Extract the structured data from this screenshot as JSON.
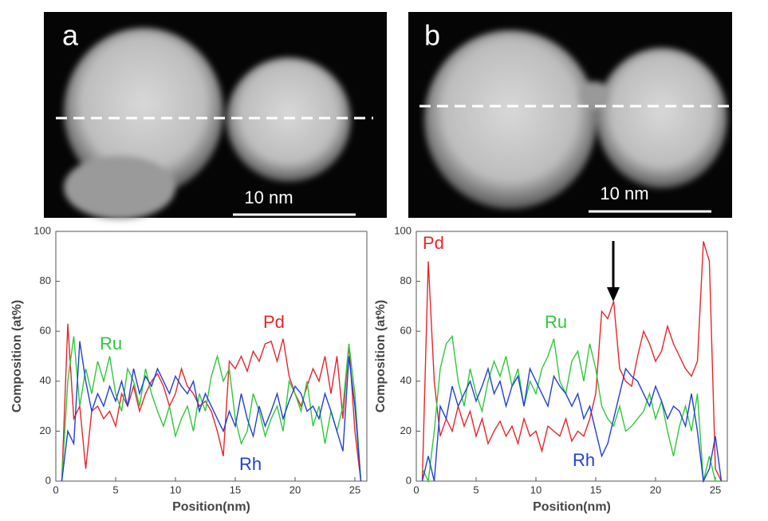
{
  "panels": [
    {
      "label": "a",
      "scale_bar": "10 nm"
    },
    {
      "label": "b",
      "scale_bar": "10 nm"
    }
  ],
  "chart_data": [
    {
      "type": "line",
      "xlabel": "Position(nm)",
      "ylabel": "Composition (at%)",
      "xlim": [
        0,
        26
      ],
      "ylim": [
        0,
        100
      ],
      "xticks": [
        0,
        5,
        10,
        15,
        20,
        25
      ],
      "yticks": [
        0,
        20,
        40,
        60,
        80,
        100
      ],
      "x": [
        0.5,
        1,
        1.5,
        2,
        2.5,
        3,
        3.5,
        4,
        4.5,
        5,
        5.5,
        6,
        6.5,
        7,
        7.5,
        8,
        8.5,
        9,
        9.5,
        10,
        10.5,
        11,
        11.5,
        12,
        12.5,
        13,
        13.5,
        14,
        14.5,
        15,
        15.5,
        16,
        16.5,
        17,
        17.5,
        18,
        18.5,
        19,
        19.5,
        20,
        20.5,
        21,
        21.5,
        22,
        22.5,
        23,
        23.5,
        24,
        24.5,
        25,
        25.5
      ],
      "series": [
        {
          "name": "Pd",
          "color": "#e8242a",
          "values": [
            0,
            63,
            25,
            30,
            5,
            28,
            30,
            25,
            28,
            22,
            35,
            30,
            38,
            28,
            35,
            40,
            43,
            38,
            30,
            35,
            45,
            38,
            35,
            30,
            32,
            28,
            20,
            10,
            48,
            45,
            50,
            44,
            52,
            48,
            55,
            56,
            48,
            57,
            42,
            35,
            30,
            38,
            45,
            40,
            50,
            35,
            50,
            25,
            55,
            20,
            0
          ]
        },
        {
          "name": "Ru",
          "color": "#2ec83a",
          "values": [
            0,
            40,
            58,
            30,
            45,
            35,
            48,
            40,
            50,
            35,
            28,
            45,
            40,
            30,
            45,
            35,
            28,
            22,
            30,
            18,
            25,
            30,
            20,
            35,
            28,
            42,
            50,
            40,
            45,
            25,
            15,
            20,
            35,
            28,
            18,
            25,
            30,
            20,
            40,
            35,
            28,
            40,
            22,
            30,
            15,
            28,
            20,
            30,
            55,
            35,
            0
          ]
        },
        {
          "name": "Rh",
          "color": "#1f3fd6",
          "values": [
            0,
            20,
            15,
            56,
            40,
            28,
            35,
            30,
            38,
            32,
            40,
            30,
            45,
            35,
            42,
            38,
            45,
            40,
            35,
            42,
            38,
            35,
            40,
            28,
            35,
            30,
            25,
            20,
            28,
            22,
            35,
            25,
            18,
            30,
            22,
            28,
            35,
            25,
            32,
            38,
            35,
            28,
            30,
            25,
            35,
            28,
            20,
            12,
            50,
            30,
            0
          ]
        }
      ]
    },
    {
      "type": "line",
      "xlabel": "Position(nm)",
      "ylabel": "Composition (at%)",
      "xlim": [
        0,
        26
      ],
      "ylim": [
        0,
        100
      ],
      "xticks": [
        0,
        5,
        10,
        15,
        20,
        25
      ],
      "yticks": [
        0,
        20,
        40,
        60,
        80,
        100
      ],
      "x": [
        0.5,
        1,
        1.5,
        2,
        2.5,
        3,
        3.5,
        4,
        4.5,
        5,
        5.5,
        6,
        6.5,
        7,
        7.5,
        8,
        8.5,
        9,
        9.5,
        10,
        10.5,
        11,
        11.5,
        12,
        12.5,
        13,
        13.5,
        14,
        14.5,
        15,
        15.5,
        16,
        16.5,
        17,
        17.5,
        18,
        18.5,
        19,
        19.5,
        20,
        20.5,
        21,
        21.5,
        22,
        22.5,
        23,
        23.5,
        24,
        24.5,
        25,
        25.5
      ],
      "series": [
        {
          "name": "Pd",
          "color": "#e8242a",
          "values": [
            0,
            88,
            40,
            18,
            25,
            20,
            30,
            22,
            28,
            18,
            25,
            15,
            20,
            24,
            18,
            22,
            15,
            25,
            18,
            20,
            12,
            22,
            20,
            18,
            25,
            16,
            20,
            18,
            25,
            35,
            68,
            65,
            72,
            45,
            40,
            38,
            50,
            60,
            55,
            48,
            52,
            62,
            55,
            50,
            45,
            42,
            48,
            96,
            88,
            5,
            0
          ]
        },
        {
          "name": "Ru",
          "color": "#2ec83a",
          "values": [
            5,
            0,
            20,
            45,
            55,
            58,
            40,
            30,
            45,
            35,
            28,
            40,
            48,
            42,
            50,
            38,
            45,
            30,
            40,
            35,
            45,
            50,
            57,
            40,
            35,
            48,
            52,
            40,
            55,
            45,
            30,
            25,
            22,
            30,
            20,
            22,
            25,
            28,
            35,
            25,
            32,
            20,
            10,
            22,
            30,
            20,
            35,
            0,
            10,
            0,
            0
          ]
        },
        {
          "name": "Rh",
          "color": "#1f3fd6",
          "values": [
            0,
            10,
            0,
            30,
            25,
            38,
            30,
            35,
            40,
            32,
            38,
            45,
            35,
            40,
            30,
            38,
            42,
            30,
            45,
            40,
            35,
            30,
            42,
            38,
            35,
            30,
            35,
            25,
            30,
            20,
            10,
            15,
            25,
            35,
            45,
            42,
            40,
            35,
            30,
            38,
            32,
            25,
            30,
            28,
            22,
            35,
            20,
            0,
            5,
            18,
            0
          ]
        }
      ]
    }
  ]
}
